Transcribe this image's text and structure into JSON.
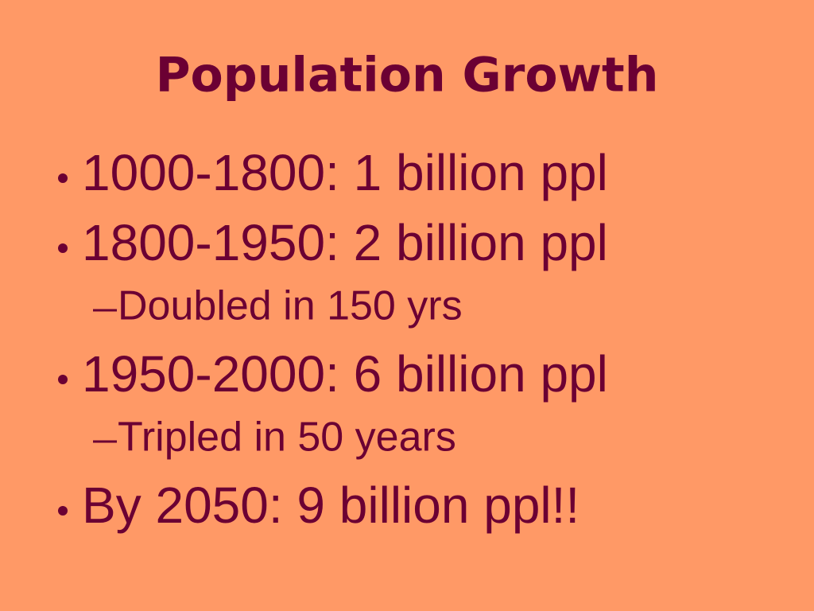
{
  "title": "Population Growth",
  "bullets": [
    {
      "text": "1000-1800: 1 billion ppl"
    },
    {
      "text": "1800-1950: 2 billion ppl",
      "subitems": [
        "Doubled in 150 yrs"
      ]
    },
    {
      "text": "1950-2000: 6 billion ppl",
      "subitems": [
        "Tripled in 50 years"
      ]
    },
    {
      "text": "By 2050: 9 billion ppl!!"
    }
  ]
}
